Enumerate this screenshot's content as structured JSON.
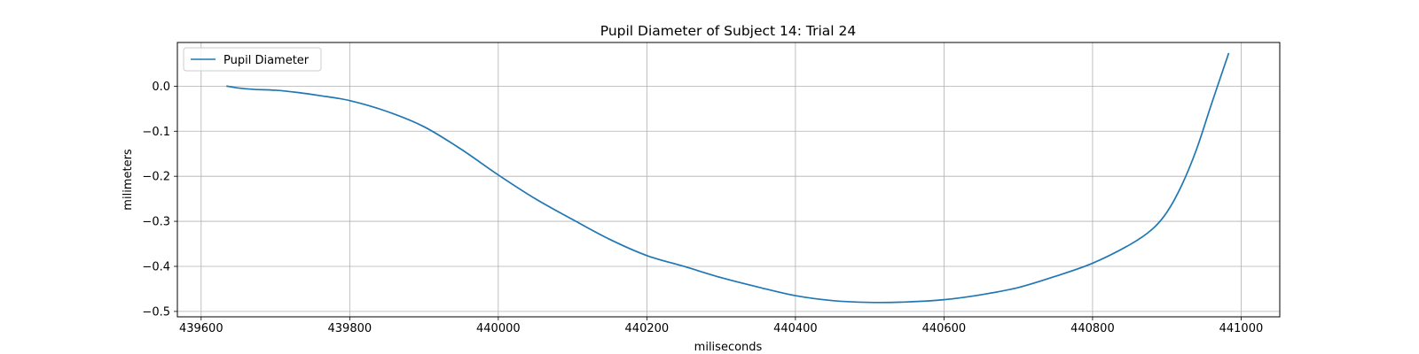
{
  "chart_data": {
    "type": "line",
    "title": "Pupil Diameter of Subject 14: Trial 24",
    "xlabel": "miliseconds",
    "ylabel": "milimeters",
    "xlim": [
      439568,
      441052
    ],
    "ylim": [
      -0.512,
      0.097
    ],
    "xticks": [
      439600,
      439800,
      440000,
      440200,
      440400,
      440600,
      440800,
      441000
    ],
    "yticks": [
      0.0,
      -0.1,
      -0.2,
      -0.3,
      -0.4,
      -0.5
    ],
    "xtick_labels": [
      "439600",
      "439800",
      "440000",
      "440200",
      "440400",
      "440600",
      "440800",
      "441000"
    ],
    "ytick_labels": [
      "0.0",
      "−0.1",
      "−0.2",
      "−0.3",
      "−0.4",
      "−0.5"
    ],
    "grid": true,
    "legend": {
      "position": "top-left",
      "entries": [
        "Pupil Diameter"
      ]
    },
    "series": [
      {
        "name": "Pupil Diameter",
        "color": "#1f77b4",
        "x": [
          439635,
          439650,
          439670,
          439700,
          439730,
          439760,
          439800,
          439850,
          439900,
          439950,
          440000,
          440050,
          440100,
          440150,
          440200,
          440250,
          440300,
          440350,
          440400,
          440450,
          440500,
          440550,
          440600,
          440650,
          440700,
          440750,
          440800,
          440850,
          440880,
          440900,
          440920,
          440940,
          440960,
          440983
        ],
        "y": [
          0.0,
          -0.004,
          -0.007,
          -0.009,
          -0.014,
          -0.021,
          -0.032,
          -0.056,
          -0.09,
          -0.14,
          -0.197,
          -0.25,
          -0.296,
          -0.34,
          -0.376,
          -0.4,
          -0.425,
          -0.446,
          -0.465,
          -0.476,
          -0.48,
          -0.479,
          -0.474,
          -0.463,
          -0.447,
          -0.422,
          -0.393,
          -0.352,
          -0.318,
          -0.28,
          -0.22,
          -0.14,
          -0.04,
          0.072
        ]
      }
    ]
  }
}
